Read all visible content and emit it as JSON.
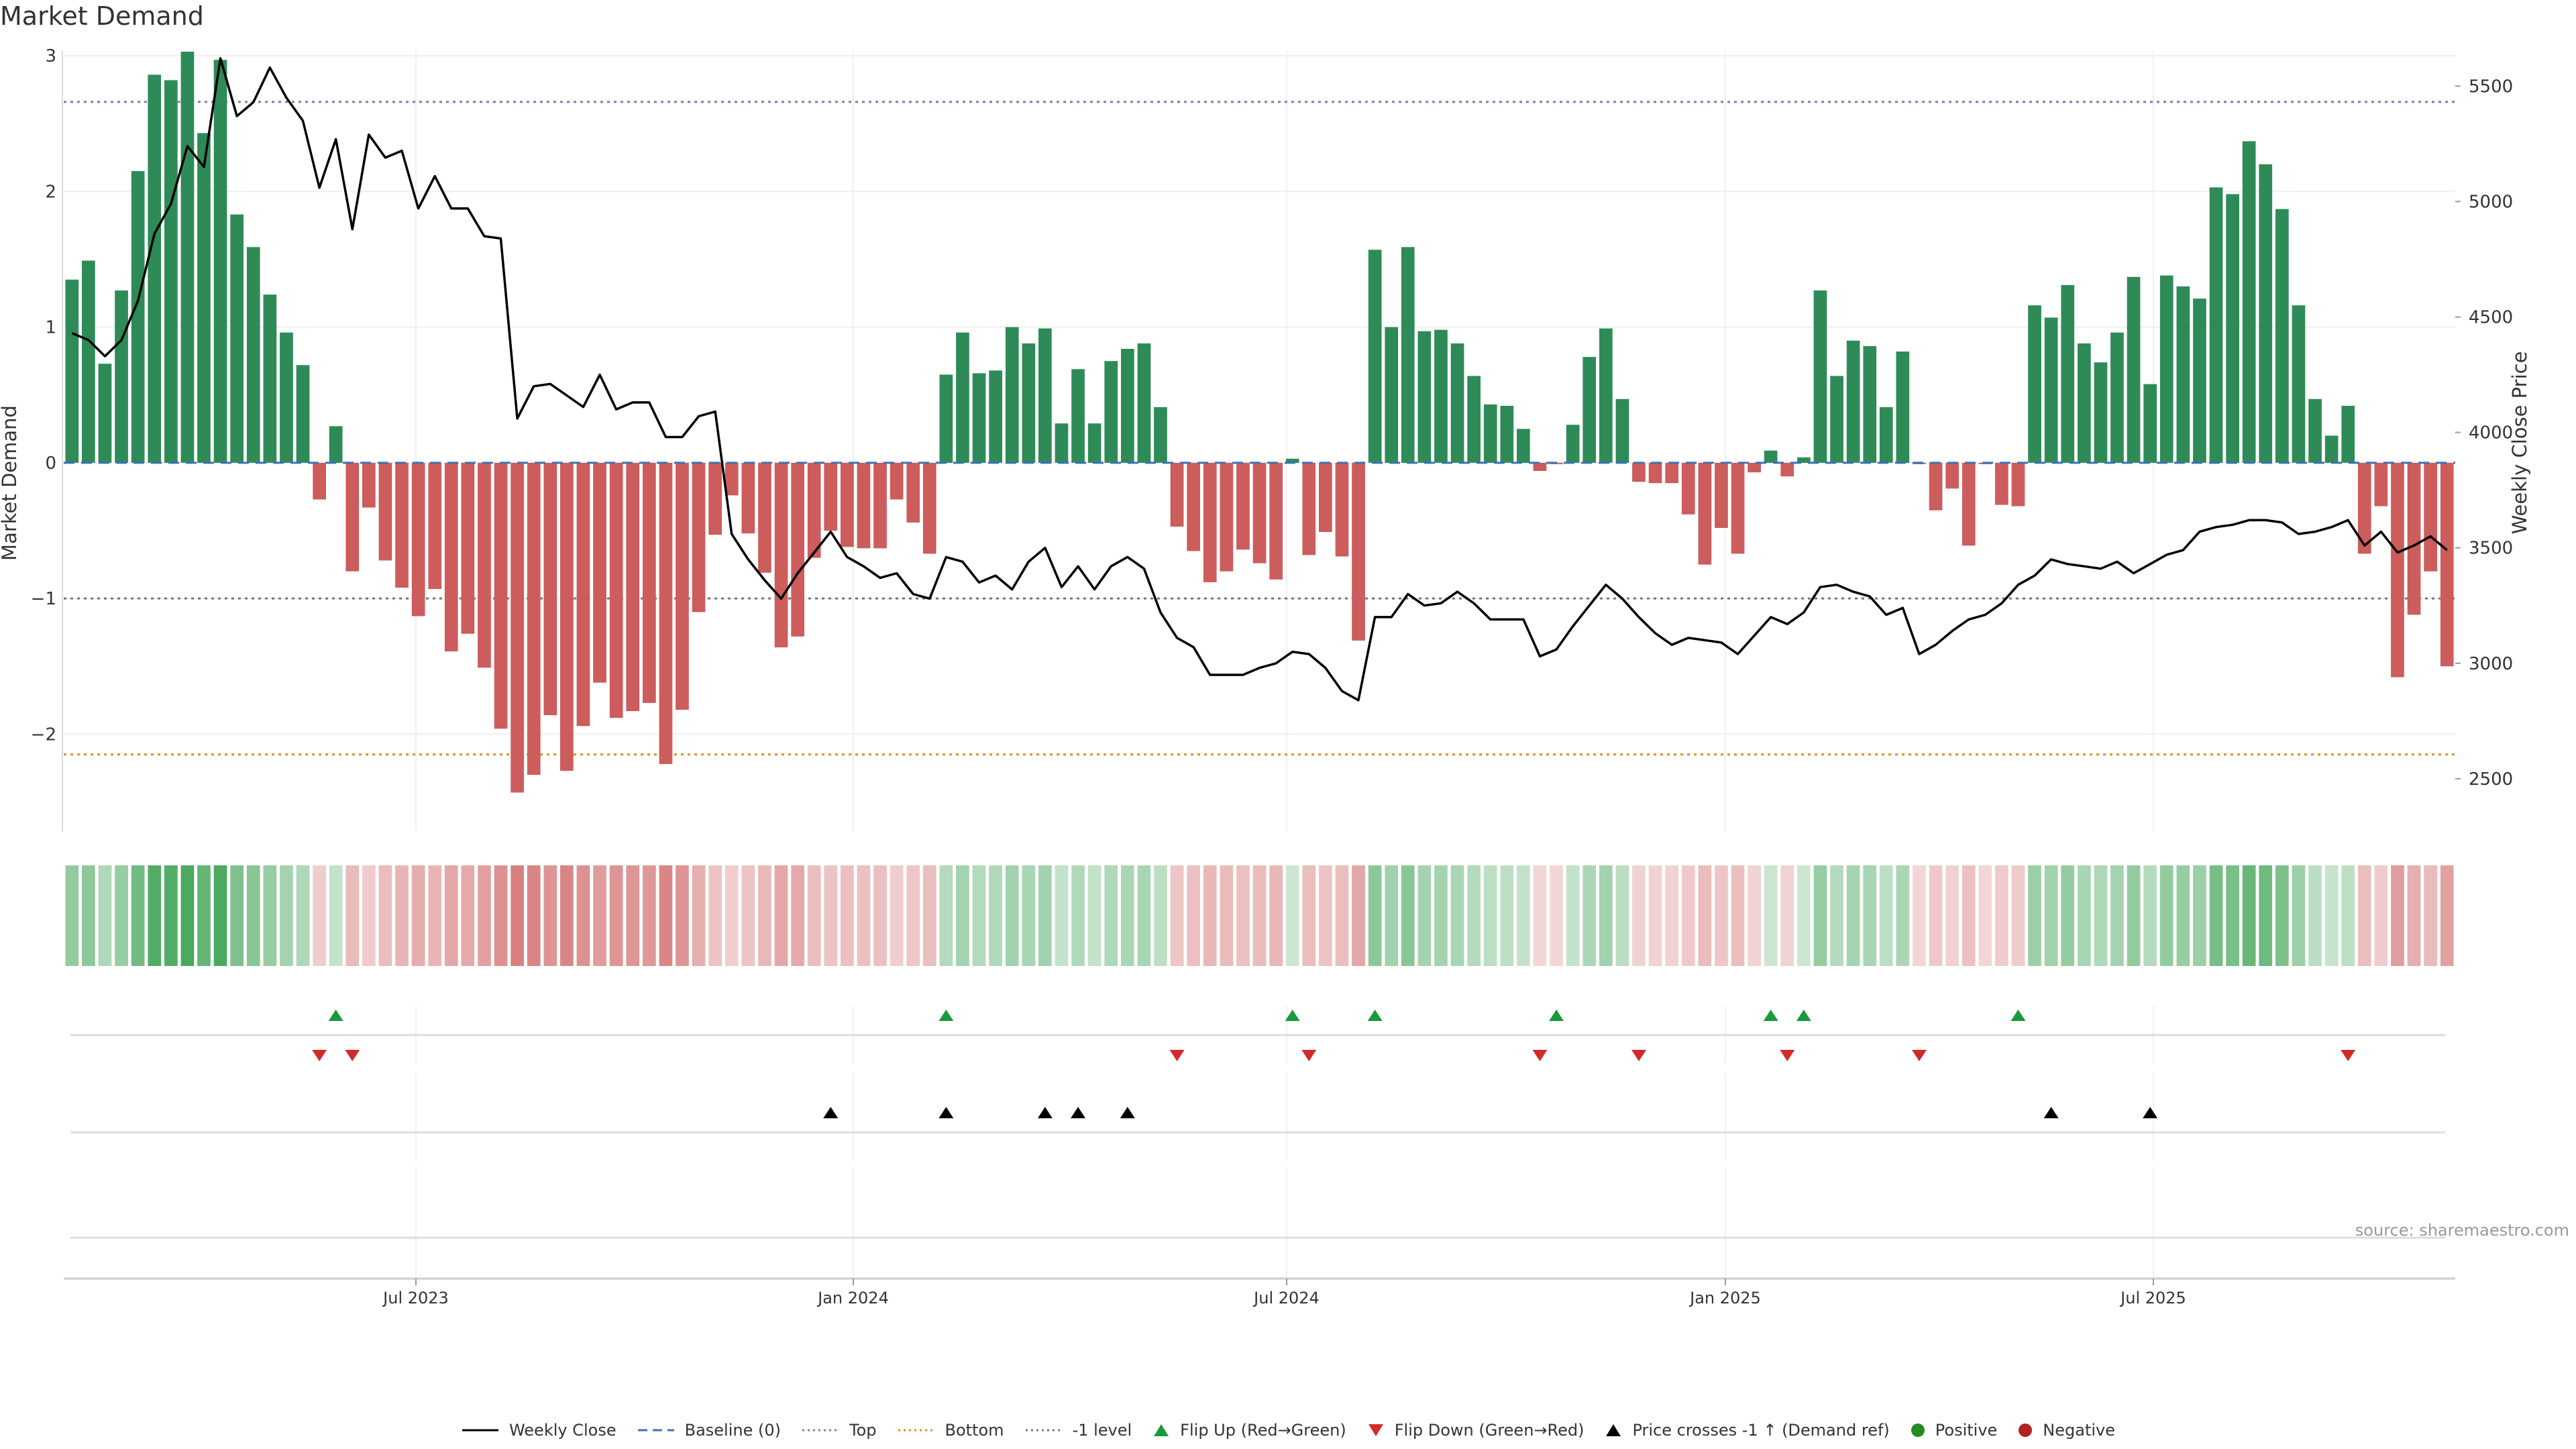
{
  "chart_data": {
    "title": "Market Demand",
    "type": "bar+line",
    "left_axis": {
      "label": "Market Demand",
      "ylim": [
        -2.72,
        3.04
      ],
      "ticks": [
        -2,
        -1,
        0,
        1,
        2,
        3
      ]
    },
    "right_axis": {
      "label": "Weekly Close Price",
      "ylim": [
        2270,
        5655
      ],
      "ticks": [
        2500,
        3000,
        3500,
        4000,
        4500,
        5000,
        5500
      ]
    },
    "x_ticks": [
      "Jul 2023",
      "Jan 2024",
      "Jul 2024",
      "Jan 2025",
      "Jul 2025"
    ],
    "reference_lines": {
      "baseline": 0,
      "top": 2.66,
      "bottom": -2.15,
      "minus_one": -1
    },
    "colors": {
      "positive": "#2e8b57",
      "negative": "#cd5c5c",
      "price": "#000000",
      "flip_up": "#1a9a3a",
      "flip_down": "#d22a2a",
      "top": "#7b7bb8",
      "bottom": "#e08c1a",
      "minus_one": "#777777",
      "baseline": "#3a72b5"
    },
    "demand": [
      1.35,
      1.49,
      0.73,
      1.27,
      2.15,
      2.86,
      2.82,
      3.03,
      2.43,
      2.97,
      1.83,
      1.59,
      1.24,
      0.96,
      0.72,
      -0.27,
      0.27,
      -0.8,
      -0.33,
      -0.72,
      -0.92,
      -1.13,
      -0.93,
      -1.39,
      -1.26,
      -1.51,
      -1.96,
      -2.43,
      -2.3,
      -1.86,
      -2.27,
      -1.94,
      -1.62,
      -1.88,
      -1.83,
      -1.77,
      -2.22,
      -1.82,
      -1.1,
      -0.53,
      -0.24,
      -0.52,
      -0.81,
      -1.36,
      -1.28,
      -0.7,
      -0.5,
      -0.62,
      -0.63,
      -0.63,
      -0.27,
      -0.44,
      -0.67,
      0.65,
      0.96,
      0.66,
      0.68,
      1.0,
      0.88,
      0.99,
      0.29,
      0.69,
      0.29,
      0.75,
      0.84,
      0.88,
      0.41,
      -0.47,
      -0.65,
      -0.88,
      -0.8,
      -0.64,
      -0.74,
      -0.86,
      0.03,
      -0.68,
      -0.51,
      -0.69,
      -1.31,
      1.57,
      1.0,
      1.59,
      0.97,
      0.98,
      0.88,
      0.64,
      0.43,
      0.42,
      0.25,
      -0.06,
      -0.01,
      0.28,
      0.78,
      0.99,
      0.47,
      -0.14,
      -0.15,
      -0.15,
      -0.38,
      -0.75,
      -0.48,
      -0.67,
      -0.07,
      0.09,
      -0.1,
      0.04,
      1.27,
      0.64,
      0.9,
      0.86,
      0.41,
      0.82,
      -0.01,
      -0.35,
      -0.19,
      -0.61,
      -0.01,
      -0.31,
      -0.32,
      1.16,
      1.07,
      1.31,
      0.88,
      0.74,
      0.96,
      1.37,
      0.58,
      1.38,
      1.3,
      1.21,
      2.03,
      1.98,
      2.37,
      2.2,
      1.87,
      1.16,
      0.47,
      0.2,
      0.42,
      -0.67,
      -0.32,
      -1.58,
      -1.12,
      -0.8,
      -1.5
    ],
    "weekly_close": [
      4430,
      4400,
      4330,
      4400,
      4570,
      4860,
      4990,
      5240,
      5150,
      5620,
      5370,
      5430,
      5580,
      5450,
      5350,
      5060,
      5270,
      4880,
      5290,
      5190,
      5220,
      4970,
      5110,
      4970,
      4970,
      4850,
      4840,
      4060,
      4200,
      4210,
      4160,
      4110,
      4250,
      4100,
      4130,
      4130,
      3980,
      3980,
      4070,
      4090,
      3560,
      3450,
      3360,
      3280,
      3390,
      3480,
      3570,
      3460,
      3420,
      3370,
      3390,
      3300,
      3280,
      3460,
      3440,
      3350,
      3380,
      3320,
      3440,
      3500,
      3330,
      3420,
      3320,
      3420,
      3460,
      3410,
      3220,
      3110,
      3070,
      2950,
      2950,
      2950,
      2980,
      3000,
      3050,
      3040,
      2980,
      2880,
      2840,
      3200,
      3200,
      3300,
      3250,
      3260,
      3310,
      3260,
      3190,
      3190,
      3190,
      3030,
      3060,
      3160,
      3250,
      3340,
      3280,
      3200,
      3130,
      3080,
      3110,
      3100,
      3090,
      3040,
      3120,
      3200,
      3170,
      3220,
      3330,
      3340,
      3310,
      3290,
      3210,
      3240,
      3040,
      3080,
      3140,
      3190,
      3210,
      3260,
      3340,
      3380,
      3450,
      3430,
      3420,
      3410,
      3440,
      3390,
      3430,
      3470,
      3490,
      3570,
      3590,
      3600,
      3620,
      3620,
      3610,
      3560,
      3570,
      3590,
      3620,
      3510,
      3570,
      3480,
      3510,
      3550,
      3490
    ],
    "flip_up_weeks": [
      16,
      53,
      74,
      79,
      90,
      103,
      105,
      118
    ],
    "flip_down_weeks": [
      15,
      17,
      67,
      75,
      89,
      95,
      104,
      112,
      138
    ],
    "price_cross_weeks": [
      46,
      53,
      59,
      61,
      64,
      120,
      126
    ],
    "series_names": [
      "Weekly Close",
      "Baseline (0)",
      "Top",
      "Bottom",
      "-1 level",
      "Flip Up (Red→Green)",
      "Flip Down (Green→Red)",
      "Price crosses -1 ↑ (Demand ref)",
      "Positive",
      "Negative"
    ]
  },
  "source_text": "source: sharemaestro.com"
}
